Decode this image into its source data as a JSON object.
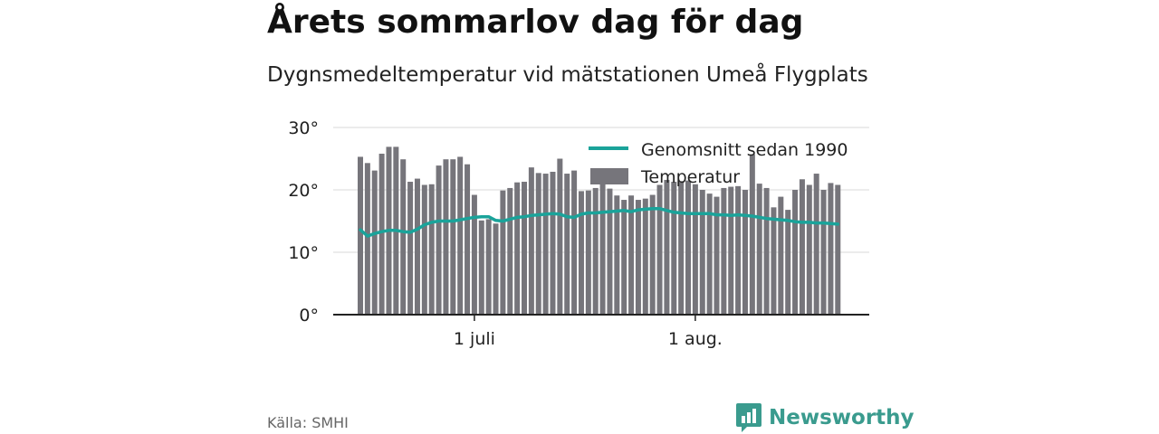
{
  "title": "Årets sommarlov dag för dag",
  "subtitle": "Dygnsmedeltemperatur vid mätstationen Umeå Flygplats",
  "source": "Källa: SMHI",
  "brand": {
    "name": "Newsworthy",
    "color": "#3a9b8e",
    "icon": "newsworthy-logo-icon"
  },
  "colors": {
    "bar": "#76757b",
    "bar_above_avg_ghost": "#e3e3e3",
    "average_line": "#1aa39a",
    "grid": "#d9d9d9",
    "axis": "#222222"
  },
  "chart_data": {
    "type": "bar",
    "ylim": [
      0,
      30
    ],
    "yticks": [
      0,
      10,
      20,
      30
    ],
    "ytick_labels": [
      "0°",
      "10°",
      "20°",
      "30°"
    ],
    "xticks": [
      {
        "index": 16,
        "label": "1 juli"
      },
      {
        "index": 47,
        "label": "1 aug."
      }
    ],
    "grid": true,
    "legend_position": "top-right",
    "series": [
      {
        "name": "Temperatur",
        "type": "bar",
        "values": [
          25.3,
          24.3,
          23.1,
          25.8,
          26.9,
          26.9,
          24.9,
          21.3,
          21.8,
          20.8,
          20.9,
          23.9,
          24.9,
          24.9,
          25.3,
          24.1,
          19.2,
          15.1,
          15.3,
          14.6,
          19.9,
          20.3,
          21.2,
          21.3,
          23.6,
          22.7,
          22.6,
          22.9,
          25.0,
          22.6,
          23.1,
          19.8,
          19.9,
          20.3,
          20.9,
          20.2,
          19.1,
          18.4,
          19.1,
          18.4,
          18.6,
          19.2,
          20.8,
          21.6,
          21.3,
          21.4,
          21.5,
          20.9,
          20.0,
          19.4,
          18.9,
          20.3,
          20.5,
          20.6,
          20.0,
          25.7,
          21.0,
          20.3,
          17.2,
          18.9,
          16.8,
          20.0,
          21.7,
          20.8,
          22.6,
          20.0,
          21.1,
          20.8
        ]
      },
      {
        "name": "Genomsnitt sedan 1990",
        "type": "line",
        "values": [
          13.6,
          12.6,
          13.0,
          13.3,
          13.5,
          13.5,
          13.3,
          13.2,
          13.7,
          14.4,
          14.8,
          15.0,
          15.0,
          15.0,
          15.2,
          15.4,
          15.6,
          15.7,
          15.7,
          15.1,
          15.0,
          15.3,
          15.6,
          15.7,
          15.9,
          16.0,
          16.1,
          16.2,
          16.1,
          15.7,
          15.6,
          16.1,
          16.3,
          16.3,
          16.4,
          16.5,
          16.6,
          16.7,
          16.5,
          16.8,
          16.9,
          17.0,
          17.0,
          16.7,
          16.4,
          16.3,
          16.2,
          16.2,
          16.2,
          16.2,
          16.0,
          16.0,
          15.9,
          16.0,
          15.9,
          15.8,
          15.6,
          15.4,
          15.3,
          15.2,
          15.1,
          14.9,
          14.8,
          14.8,
          14.7,
          14.7,
          14.6,
          14.5
        ]
      }
    ]
  }
}
